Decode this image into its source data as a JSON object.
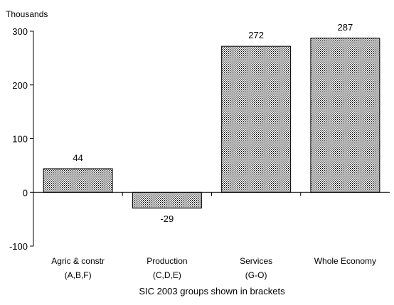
{
  "chart_data": {
    "type": "bar",
    "title": "",
    "unit_label": "Thousands",
    "xlabel": "SIC 2003 groups shown in brackets",
    "ylabel": "",
    "ylim": [
      -100,
      300
    ],
    "yticks": [
      -100,
      0,
      100,
      200,
      300
    ],
    "grid": false,
    "legend": "none",
    "categories": [
      {
        "line1": "Agric & constr",
        "line2": "(A,B,F)"
      },
      {
        "line1": "Production",
        "line2": "(C,D,E)"
      },
      {
        "line1": "Services",
        "line2": "(G-O)"
      },
      {
        "line1": "Whole Economy",
        "line2": ""
      }
    ],
    "values": [
      44,
      -29,
      272,
      287
    ],
    "data_labels": [
      "44",
      "-29",
      "272",
      "287"
    ],
    "bar_pattern": "dotted",
    "colors": {
      "bar_fill": "#ffffff",
      "bar_dots": "#000000",
      "axis": "#000000"
    }
  }
}
